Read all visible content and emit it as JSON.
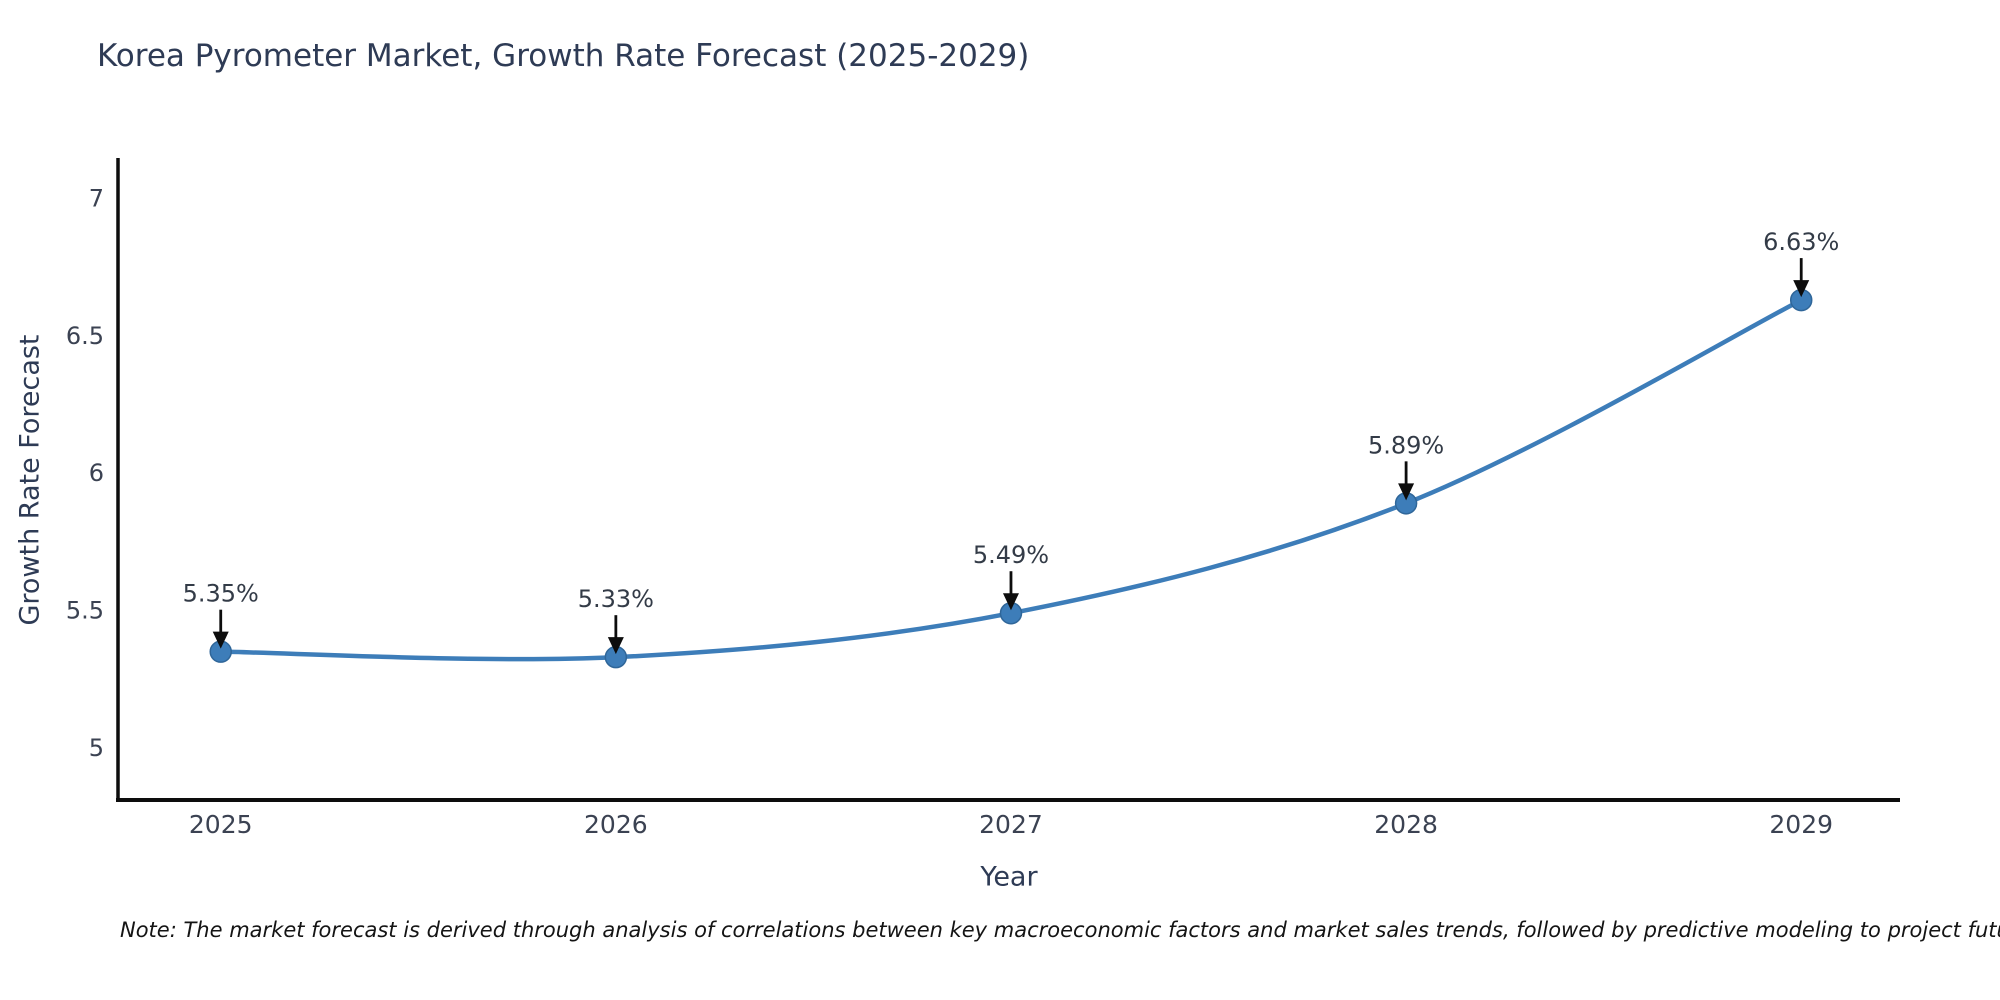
{
  "note": "Note: The market forecast is derived through analysis of correlations between key macroeconomic factors and market sales trends, followed by predictive modeling to project future sales",
  "chart_data": {
    "type": "line",
    "title": "Korea Pyrometer Market, Growth Rate Forecast (2025-2029)",
    "xlabel": "Year",
    "ylabel": "Growth Rate Forecast",
    "x": [
      2025,
      2026,
      2027,
      2028,
      2029
    ],
    "series": [
      {
        "name": "Growth Rate Forecast",
        "values": [
          5.35,
          5.33,
          5.49,
          5.89,
          6.63
        ]
      }
    ],
    "point_labels": [
      "5.35%",
      "5.33%",
      "5.49%",
      "5.89%",
      "6.63%"
    ],
    "xticks": [
      "2025",
      "2026",
      "2027",
      "2028",
      "2029"
    ],
    "yticks": [
      5,
      5.5,
      6,
      6.5,
      7
    ],
    "ytick_labels": [
      "5",
      "5.5",
      "6",
      "6.5",
      "7"
    ],
    "xlim": [
      2024.74,
      2029.25
    ],
    "ylim": [
      4.81,
      7.14
    ],
    "grid": false,
    "legend": null,
    "line_color": "#3d7db9",
    "marker_color": "#3d7db9",
    "marker_edge_color": "#2f6699",
    "axis_color": "#0d0d0d",
    "tick_label_color": "#3b4252",
    "annotation_text_color": "#333b47",
    "annotation_arrow_color": "#0d0d0d"
  }
}
